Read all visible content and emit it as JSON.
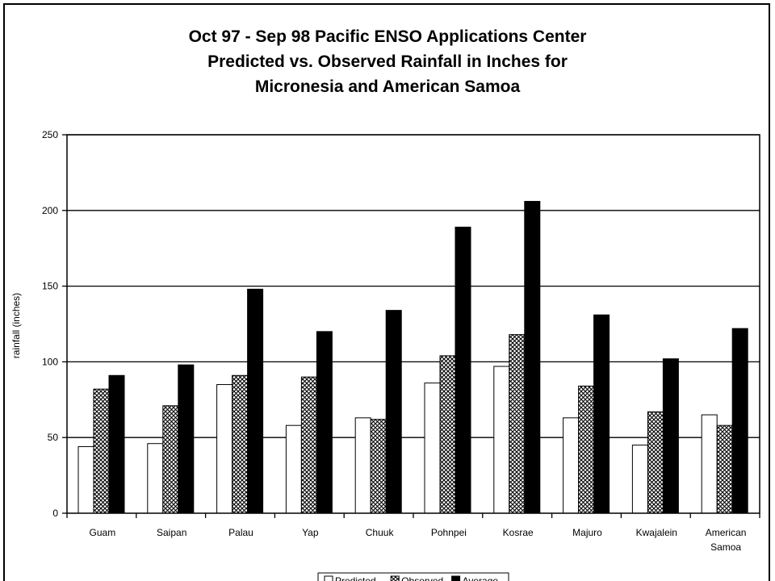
{
  "chart_data": {
    "type": "bar",
    "title_lines": [
      "Oct 97 - Sep 98 Pacific ENSO Applications Center",
      "Predicted vs. Observed Rainfall in Inches for",
      "Micronesia and American Samoa"
    ],
    "ylabel": "rainfall (inches)",
    "xlabel": "",
    "ylim": [
      0,
      250
    ],
    "yticks": [
      0,
      50,
      100,
      150,
      200,
      250
    ],
    "grid": true,
    "legend_position": "bottom",
    "categories": [
      "Guam",
      "Saipan",
      "Palau",
      "Yap",
      "Chuuk",
      "Pohnpei",
      "Kosrae",
      "Majuro",
      "Kwajalein",
      "American Samoa"
    ],
    "series": [
      {
        "name": "Predicted",
        "fill": "white",
        "values": [
          44,
          46,
          85,
          58,
          63,
          86,
          97,
          63,
          45,
          65
        ]
      },
      {
        "name": "Observed",
        "fill": "crosshatch",
        "values": [
          82,
          71,
          91,
          90,
          62,
          104,
          118,
          84,
          67,
          58
        ]
      },
      {
        "name": "Average",
        "fill": "black",
        "values": [
          91,
          98,
          148,
          120,
          134,
          189,
          206,
          131,
          102,
          122
        ]
      }
    ]
  },
  "colors": {
    "bar_outline": "#000000",
    "average": "#000000",
    "predicted": "#ffffff",
    "background": "#ffffff"
  }
}
